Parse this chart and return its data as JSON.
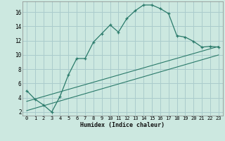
{
  "xlabel": "Humidex (Indice chaleur)",
  "bg_color": "#cce8e0",
  "grid_color": "#aacccc",
  "line_color": "#2a7a6a",
  "xlim": [
    -0.5,
    23.5
  ],
  "ylim": [
    1.5,
    17.5
  ],
  "xticks": [
    0,
    1,
    2,
    3,
    4,
    5,
    6,
    7,
    8,
    9,
    10,
    11,
    12,
    13,
    14,
    15,
    16,
    17,
    18,
    19,
    20,
    21,
    22,
    23
  ],
  "yticks": [
    2,
    4,
    6,
    8,
    10,
    12,
    14,
    16
  ],
  "line1_x": [
    0,
    1,
    2,
    3,
    4,
    5,
    6,
    7,
    8,
    9,
    10,
    11,
    12,
    13,
    14,
    15,
    16,
    17,
    18,
    19,
    20,
    21,
    22,
    23
  ],
  "line1_y": [
    5.0,
    3.8,
    3.0,
    2.0,
    4.2,
    7.2,
    9.5,
    9.5,
    11.8,
    13.0,
    14.2,
    13.2,
    15.1,
    16.2,
    17.0,
    17.0,
    16.5,
    15.8,
    12.7,
    12.5,
    11.9,
    11.1,
    11.2,
    11.1
  ],
  "line2_x": [
    0,
    23
  ],
  "line2_y": [
    3.5,
    11.2
  ],
  "line3_x": [
    0,
    23
  ],
  "line3_y": [
    2.2,
    10.0
  ]
}
